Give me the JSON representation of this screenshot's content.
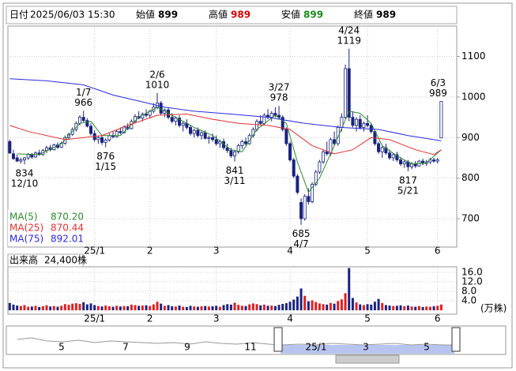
{
  "header": {
    "date_label": "日付",
    "date": "2025/06/03 15:30",
    "items": [
      {
        "label": "始値",
        "value": 899,
        "color": "#000000"
      },
      {
        "label": "高値",
        "value": 989,
        "color": "#d40000"
      },
      {
        "label": "安値",
        "value": 899,
        "color": "#1a8a1a"
      },
      {
        "label": "終値",
        "value": 989,
        "color": "#000000"
      }
    ]
  },
  "chart_data": [
    {
      "type": "candlestick",
      "up_color": "#ffffff",
      "down_color": "#1a237e",
      "edge_color": "#1a237e",
      "grid": true,
      "xlim": [
        -0.5,
        121.2
      ],
      "xticks": [
        {
          "value": 23,
          "label": "25/1"
        },
        {
          "value": 38,
          "label": "2"
        },
        {
          "value": 56,
          "label": "3"
        },
        {
          "value": 76,
          "label": "4"
        },
        {
          "value": 97,
          "label": "5"
        },
        {
          "value": 116,
          "label": "6"
        }
      ],
      "ylim": [
        630,
        1175
      ],
      "yticks": [
        700,
        800,
        900,
        1000,
        1100
      ],
      "candles": [
        [
          890,
          895,
          860,
          862
        ],
        [
          860,
          870,
          845,
          848
        ],
        [
          850,
          858,
          840,
          842
        ],
        [
          842,
          850,
          836,
          845
        ],
        [
          845,
          852,
          834,
          850
        ],
        [
          850,
          862,
          845,
          858
        ],
        [
          858,
          862,
          848,
          852
        ],
        [
          852,
          866,
          850,
          862
        ],
        [
          862,
          870,
          855,
          858
        ],
        [
          858,
          872,
          855,
          868
        ],
        [
          868,
          880,
          862,
          875
        ],
        [
          875,
          882,
          866,
          870
        ],
        [
          870,
          885,
          868,
          882
        ],
        [
          882,
          888,
          872,
          876
        ],
        [
          876,
          890,
          874,
          886
        ],
        [
          886,
          905,
          882,
          900
        ],
        [
          900,
          912,
          895,
          908
        ],
        [
          908,
          925,
          904,
          920
        ],
        [
          920,
          940,
          915,
          935
        ],
        [
          935,
          955,
          930,
          950
        ],
        [
          950,
          966,
          938,
          942
        ],
        [
          942,
          948,
          925,
          928
        ],
        [
          928,
          935,
          905,
          910
        ],
        [
          910,
          918,
          890,
          895
        ],
        [
          895,
          905,
          885,
          900
        ],
        [
          900,
          904,
          882,
          888
        ],
        [
          888,
          898,
          876,
          894
        ],
        [
          894,
          910,
          890,
          905
        ],
        [
          905,
          915,
          898,
          902
        ],
        [
          902,
          920,
          900,
          915
        ],
        [
          915,
          925,
          908,
          912
        ],
        [
          912,
          930,
          910,
          926
        ],
        [
          926,
          935,
          918,
          922
        ],
        [
          922,
          945,
          920,
          940
        ],
        [
          940,
          958,
          935,
          952
        ],
        [
          952,
          965,
          945,
          948
        ],
        [
          948,
          962,
          940,
          958
        ],
        [
          958,
          970,
          950,
          955
        ],
        [
          955,
          968,
          948,
          965
        ],
        [
          965,
          985,
          960,
          975
        ],
        [
          975,
          1010,
          970,
          985
        ],
        [
          985,
          990,
          955,
          960
        ],
        [
          960,
          972,
          950,
          968
        ],
        [
          968,
          975,
          945,
          950
        ],
        [
          950,
          960,
          935,
          940
        ],
        [
          940,
          952,
          930,
          948
        ],
        [
          948,
          955,
          925,
          930
        ],
        [
          930,
          940,
          915,
          935
        ],
        [
          935,
          945,
          920,
          925
        ],
        [
          925,
          932,
          905,
          910
        ],
        [
          910,
          922,
          900,
          918
        ],
        [
          918,
          925,
          900,
          905
        ],
        [
          905,
          915,
          895,
          912
        ],
        [
          912,
          918,
          895,
          898
        ],
        [
          898,
          905,
          885,
          900
        ],
        [
          900,
          910,
          890,
          895
        ],
        [
          895,
          905,
          880,
          885
        ],
        [
          885,
          895,
          875,
          890
        ],
        [
          890,
          898,
          870,
          875
        ],
        [
          875,
          885,
          862,
          868
        ],
        [
          868,
          875,
          850,
          855
        ],
        [
          855,
          870,
          841,
          865
        ],
        [
          865,
          885,
          860,
          880
        ],
        [
          880,
          895,
          872,
          890
        ],
        [
          890,
          900,
          880,
          885
        ],
        [
          885,
          910,
          882,
          905
        ],
        [
          905,
          925,
          900,
          920
        ],
        [
          920,
          945,
          915,
          940
        ],
        [
          940,
          955,
          930,
          935
        ],
        [
          935,
          960,
          930,
          955
        ],
        [
          955,
          970,
          945,
          950
        ],
        [
          950,
          965,
          940,
          960
        ],
        [
          960,
          975,
          950,
          955
        ],
        [
          955,
          978,
          945,
          950
        ],
        [
          950,
          955,
          915,
          920
        ],
        [
          920,
          925,
          880,
          885
        ],
        [
          885,
          890,
          840,
          845
        ],
        [
          845,
          850,
          800,
          805
        ],
        [
          805,
          810,
          760,
          765
        ],
        [
          740,
          750,
          685,
          700
        ],
        [
          700,
          760,
          695,
          755
        ],
        [
          755,
          775,
          735,
          742
        ],
        [
          742,
          790,
          738,
          785
        ],
        [
          785,
          820,
          780,
          815
        ],
        [
          815,
          845,
          810,
          840
        ],
        [
          840,
          870,
          835,
          865
        ],
        [
          865,
          890,
          855,
          860
        ],
        [
          860,
          900,
          855,
          895
        ],
        [
          895,
          915,
          880,
          885
        ],
        [
          885,
          930,
          880,
          925
        ],
        [
          925,
          960,
          915,
          950
        ],
        [
          950,
          1080,
          945,
          1070
        ],
        [
          1070,
          1119,
          940,
          950
        ],
        [
          950,
          965,
          925,
          930
        ],
        [
          930,
          950,
          915,
          945
        ],
        [
          945,
          955,
          920,
          925
        ],
        [
          925,
          940,
          915,
          935
        ],
        [
          935,
          955,
          925,
          930
        ],
        [
          930,
          935,
          910,
          915
        ],
        [
          915,
          918,
          880,
          885
        ],
        [
          885,
          890,
          860,
          865
        ],
        [
          865,
          880,
          850,
          875
        ],
        [
          875,
          885,
          858,
          862
        ],
        [
          862,
          870,
          845,
          850
        ],
        [
          850,
          862,
          842,
          858
        ],
        [
          858,
          865,
          840,
          845
        ],
        [
          845,
          852,
          830,
          835
        ],
        [
          835,
          845,
          825,
          840
        ],
        [
          840,
          845,
          817,
          828
        ],
        [
          828,
          840,
          822,
          835
        ],
        [
          835,
          842,
          825,
          830
        ],
        [
          830,
          845,
          828,
          842
        ],
        [
          842,
          848,
          832,
          836
        ],
        [
          836,
          845,
          830,
          840
        ],
        [
          840,
          850,
          835,
          845
        ],
        [
          845,
          850,
          838,
          842
        ],
        [
          842,
          850,
          836,
          845
        ],
        [
          899,
          989,
          899,
          989
        ]
      ],
      "series": [
        {
          "name": "MA(5)",
          "color": "#2e8b2e",
          "current": {
            "value": 870.2,
            "label": "870.20"
          },
          "x": [
            2,
            8,
            14,
            19,
            22,
            25,
            30,
            35,
            40,
            45,
            50,
            55,
            60,
            63,
            67,
            72,
            75,
            78,
            81,
            84,
            88,
            92,
            95,
            98,
            101,
            105,
            109,
            113,
            117
          ],
          "values": [
            860,
            858,
            885,
            935,
            940,
            905,
            905,
            950,
            975,
            950,
            925,
            905,
            870,
            865,
            920,
            955,
            935,
            840,
            765,
            800,
            880,
            965,
            960,
            935,
            880,
            855,
            835,
            838,
            870
          ]
        },
        {
          "name": "MA(25)",
          "color": "#e03030",
          "current": {
            "value": 870.44,
            "label": "870.44"
          },
          "x": [
            0,
            5,
            15,
            25,
            32,
            40,
            48,
            55,
            62,
            70,
            76,
            82,
            88,
            93,
            98,
            103,
            110,
            115,
            117
          ],
          "values": [
            930,
            915,
            895,
            905,
            930,
            955,
            958,
            945,
            935,
            930,
            920,
            880,
            860,
            870,
            900,
            895,
            870,
            858,
            870
          ]
        },
        {
          "name": "MA(75)",
          "color": "#2a2ae0",
          "current": {
            "value": 892.01,
            "label": "892.01"
          },
          "x": [
            0,
            10,
            20,
            28,
            35,
            42,
            50,
            60,
            70,
            80,
            90,
            100,
            108,
            117
          ],
          "values": [
            1045,
            1040,
            1030,
            1005,
            990,
            975,
            965,
            958,
            950,
            935,
            925,
            920,
            905,
            892
          ]
        }
      ],
      "annotations": [
        {
          "x": 4,
          "date": "12/10",
          "value": 834,
          "side": "below"
        },
        {
          "x": 20,
          "date": "1/7",
          "value": 966,
          "side": "above"
        },
        {
          "x": 26,
          "date": "1/15",
          "value": 876,
          "side": "below"
        },
        {
          "x": 40,
          "date": "2/6",
          "value": 1010,
          "side": "above"
        },
        {
          "x": 61,
          "date": "3/11",
          "value": 841,
          "side": "below"
        },
        {
          "x": 73,
          "date": "3/27",
          "value": 978,
          "side": "above"
        },
        {
          "x": 79,
          "date": "4/7",
          "value": 685,
          "side": "below"
        },
        {
          "x": 92,
          "date": "4/24",
          "value": 1119,
          "side": "above"
        },
        {
          "x": 108,
          "date": "5/21",
          "value": 817,
          "side": "below"
        },
        {
          "x": 117,
          "date": "6/3",
          "value": 989,
          "side": "above"
        }
      ]
    },
    {
      "type": "bar",
      "title": "出来高",
      "current_label": "24,400株",
      "unit": "(万株)",
      "up_color": "#e02020",
      "down_color": "#1a237e",
      "grid": true,
      "ylim": [
        -1.3,
        18
      ],
      "yticks": [
        {
          "value": 4,
          "label": "4.0"
        },
        {
          "value": 8,
          "label": "8.0"
        },
        {
          "value": 12,
          "label": "12.0"
        },
        {
          "value": 16,
          "label": "16.0"
        }
      ],
      "values": [
        3.1,
        2.4,
        2.0,
        1.8,
        2.2,
        1.5,
        1.6,
        1.9,
        1.4,
        1.7,
        2.1,
        1.6,
        1.8,
        1.5,
        1.9,
        2.6,
        2.3,
        2.8,
        3.0,
        2.7,
        3.4,
        2.5,
        2.9,
        2.2,
        1.8,
        1.6,
        2.0,
        1.7,
        1.5,
        1.9,
        1.6,
        1.8,
        1.7,
        2.4,
        2.2,
        1.9,
        2.0,
        2.1,
        1.8,
        2.5,
        3.6,
        2.8,
        1.9,
        2.2,
        1.7,
        1.6,
        2.0,
        1.5,
        1.4,
        1.9,
        1.6,
        1.5,
        1.7,
        1.8,
        1.6,
        1.7,
        1.9,
        1.5,
        2.2,
        2.6,
        2.4,
        3.2,
        2.3,
        1.9,
        1.8,
        2.5,
        2.9,
        2.6,
        2.1,
        2.4,
        1.9,
        2.0,
        1.8,
        2.3,
        2.7,
        3.0,
        3.6,
        4.5,
        5.8,
        9.2,
        6.1,
        3.8,
        4.2,
        3.5,
        2.9,
        2.6,
        2.4,
        3.1,
        2.8,
        3.9,
        4.6,
        7.2,
        17.8,
        5.2,
        3.3,
        2.5,
        2.2,
        2.6,
        2.4,
        3.6,
        4.8,
        3.1,
        2.2,
        2.0,
        1.8,
        1.9,
        2.1,
        1.7,
        2.0,
        1.6,
        1.5,
        1.8,
        1.4,
        1.6,
        1.5,
        1.7,
        1.9,
        2.44
      ]
    }
  ],
  "navigator": {
    "labels": [
      "5",
      "7",
      "9",
      "11",
      "25/1",
      "3",
      "5"
    ]
  }
}
